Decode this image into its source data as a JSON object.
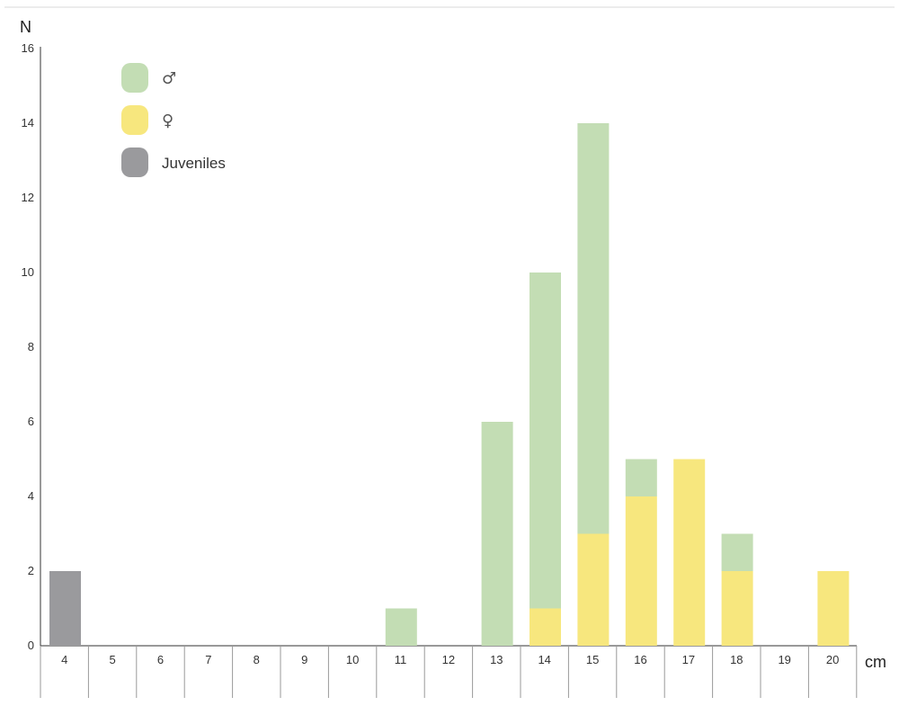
{
  "chart_data": {
    "type": "bar",
    "stacked": true,
    "ylabel": "N",
    "xlabel": "cm",
    "ylim": [
      0,
      16
    ],
    "yticks": [
      0,
      2,
      4,
      6,
      8,
      10,
      12,
      14,
      16
    ],
    "categories": [
      "4",
      "5",
      "6",
      "7",
      "8",
      "9",
      "10",
      "11",
      "12",
      "13",
      "14",
      "15",
      "16",
      "17",
      "18",
      "19",
      "20"
    ],
    "series": [
      {
        "name": "Juveniles",
        "color": "#9a9a9d",
        "values": [
          2,
          0,
          0,
          0,
          0,
          0,
          0,
          0,
          0,
          0,
          0,
          0,
          0,
          0,
          0,
          0,
          0
        ]
      },
      {
        "name": "♀",
        "color": "#f7e77e",
        "values": [
          0,
          0,
          0,
          0,
          0,
          0,
          0,
          0,
          0,
          0,
          1,
          3,
          4,
          5,
          2,
          0,
          2
        ]
      },
      {
        "name": "♂",
        "color": "#c3ddb4",
        "values": [
          0,
          0,
          0,
          0,
          0,
          0,
          0,
          1,
          0,
          6,
          9,
          11,
          1,
          0,
          1,
          0,
          0
        ]
      }
    ],
    "legend": {
      "placement": "top-left",
      "order": [
        "♂",
        "♀",
        "Juveniles"
      ]
    },
    "grid": false
  }
}
